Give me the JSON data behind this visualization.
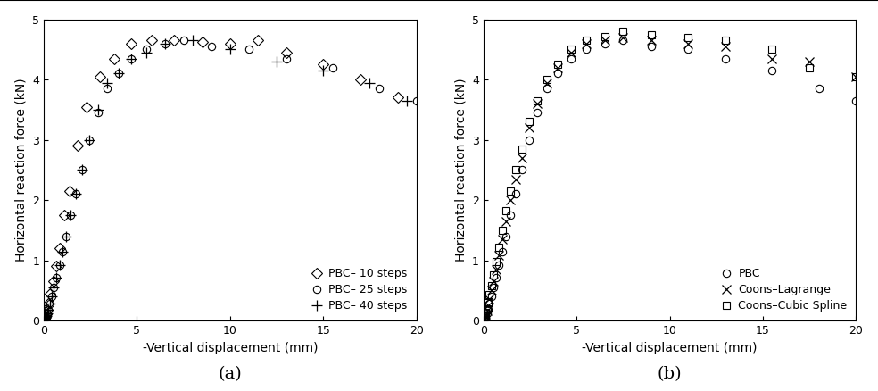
{
  "panel_a": {
    "pbc_10_x": [
      0.02,
      0.05,
      0.08,
      0.12,
      0.18,
      0.25,
      0.35,
      0.5,
      0.65,
      0.85,
      1.1,
      1.4,
      1.8,
      2.3,
      3.0,
      3.8,
      4.7,
      5.8,
      7.0,
      8.5,
      10.0,
      11.5,
      13.0,
      15.0,
      17.0,
      19.0
    ],
    "pbc_10_y": [
      0.01,
      0.03,
      0.06,
      0.1,
      0.18,
      0.28,
      0.45,
      0.65,
      0.9,
      1.2,
      1.75,
      2.15,
      2.9,
      3.55,
      4.05,
      4.35,
      4.6,
      4.65,
      4.65,
      4.62,
      4.6,
      4.65,
      4.45,
      4.25,
      4.0,
      3.7
    ],
    "pbc_25_x": [
      0.02,
      0.04,
      0.06,
      0.09,
      0.13,
      0.18,
      0.24,
      0.32,
      0.42,
      0.54,
      0.68,
      0.84,
      1.0,
      1.2,
      1.45,
      1.72,
      2.05,
      2.45,
      2.9,
      3.4,
      4.0,
      4.7,
      5.5,
      6.5,
      7.5,
      9.0,
      11.0,
      13.0,
      15.5,
      18.0,
      20.0
    ],
    "pbc_25_y": [
      0.005,
      0.01,
      0.02,
      0.04,
      0.07,
      0.12,
      0.18,
      0.28,
      0.4,
      0.55,
      0.72,
      0.92,
      1.15,
      1.4,
      1.75,
      2.1,
      2.5,
      3.0,
      3.45,
      3.85,
      4.1,
      4.35,
      4.5,
      4.6,
      4.65,
      4.55,
      4.5,
      4.35,
      4.2,
      3.85,
      3.65
    ],
    "pbc_40_x": [
      0.02,
      0.04,
      0.06,
      0.09,
      0.13,
      0.18,
      0.24,
      0.32,
      0.42,
      0.54,
      0.68,
      0.84,
      1.0,
      1.2,
      1.45,
      1.72,
      2.05,
      2.45,
      2.9,
      3.4,
      4.0,
      4.7,
      5.5,
      6.5,
      8.0,
      10.0,
      12.5,
      15.0,
      17.5,
      19.5
    ],
    "pbc_40_y": [
      0.005,
      0.01,
      0.02,
      0.04,
      0.07,
      0.12,
      0.18,
      0.28,
      0.4,
      0.55,
      0.72,
      0.92,
      1.15,
      1.4,
      1.75,
      2.1,
      2.5,
      3.0,
      3.5,
      3.95,
      4.1,
      4.35,
      4.45,
      4.6,
      4.65,
      4.5,
      4.3,
      4.15,
      3.95,
      3.65
    ],
    "xlabel": "-Vertical displacement (mm)",
    "ylabel": "Horizontal reaction force (kN)",
    "xlim": [
      0,
      20
    ],
    "ylim": [
      0,
      5
    ],
    "label_a": "(a)",
    "legend_labels": [
      "PBC– 10 steps",
      "PBC– 25 steps",
      "PBC– 40 steps"
    ]
  },
  "panel_b": {
    "pbc_x": [
      0.02,
      0.04,
      0.06,
      0.09,
      0.13,
      0.18,
      0.24,
      0.32,
      0.42,
      0.54,
      0.68,
      0.84,
      1.0,
      1.2,
      1.45,
      1.72,
      2.05,
      2.45,
      2.9,
      3.4,
      4.0,
      4.7,
      5.5,
      6.5,
      7.5,
      9.0,
      11.0,
      13.0,
      15.5,
      18.0,
      20.0
    ],
    "pbc_y": [
      0.005,
      0.01,
      0.02,
      0.04,
      0.07,
      0.12,
      0.18,
      0.28,
      0.4,
      0.55,
      0.72,
      0.92,
      1.15,
      1.4,
      1.75,
      2.1,
      2.5,
      3.0,
      3.45,
      3.85,
      4.1,
      4.35,
      4.5,
      4.6,
      4.65,
      4.55,
      4.5,
      4.35,
      4.15,
      3.85,
      3.65
    ],
    "coons_lag_x": [
      0.02,
      0.04,
      0.06,
      0.09,
      0.13,
      0.18,
      0.24,
      0.32,
      0.42,
      0.54,
      0.68,
      0.84,
      1.0,
      1.2,
      1.45,
      1.72,
      2.05,
      2.45,
      2.9,
      3.4,
      4.0,
      4.7,
      5.5,
      6.5,
      7.5,
      9.0,
      11.0,
      13.0,
      15.5,
      17.5,
      20.0
    ],
    "coons_lag_y": [
      0.01,
      0.02,
      0.04,
      0.07,
      0.11,
      0.17,
      0.25,
      0.36,
      0.5,
      0.66,
      0.85,
      1.08,
      1.35,
      1.65,
      2.0,
      2.35,
      2.7,
      3.2,
      3.6,
      3.95,
      4.2,
      4.45,
      4.6,
      4.65,
      4.7,
      4.65,
      4.6,
      4.55,
      4.35,
      4.3,
      4.05
    ],
    "coons_cub_x": [
      0.02,
      0.04,
      0.06,
      0.09,
      0.13,
      0.18,
      0.24,
      0.32,
      0.42,
      0.54,
      0.68,
      0.84,
      1.0,
      1.2,
      1.45,
      1.72,
      2.05,
      2.45,
      2.9,
      3.4,
      4.0,
      4.7,
      5.5,
      6.5,
      7.5,
      9.0,
      11.0,
      13.0,
      15.5,
      17.5,
      20.0
    ],
    "coons_cub_y": [
      0.01,
      0.02,
      0.04,
      0.08,
      0.13,
      0.2,
      0.3,
      0.43,
      0.58,
      0.76,
      0.98,
      1.22,
      1.5,
      1.82,
      2.15,
      2.5,
      2.85,
      3.3,
      3.65,
      4.0,
      4.25,
      4.5,
      4.65,
      4.72,
      4.8,
      4.75,
      4.7,
      4.65,
      4.5,
      4.2,
      4.05
    ],
    "xlabel": "-Vertical displacement (mm)",
    "ylabel": "Horizontal reaction force (kN)",
    "xlim": [
      0,
      20
    ],
    "ylim": [
      0,
      5
    ],
    "label_b": "(b)",
    "legend_labels": [
      "PBC",
      "Coons–Lagrange",
      "Coons–Cubic Spline"
    ]
  },
  "figure_bg": "#ffffff",
  "axes_bg": "#ffffff",
  "line_color": "#000000",
  "marker_color": "#000000",
  "marker_size": 5,
  "font_size": 10,
  "tick_font_size": 9,
  "label_font_size": 10,
  "top_border_color": "#000000",
  "top_border_lw": 1.5
}
